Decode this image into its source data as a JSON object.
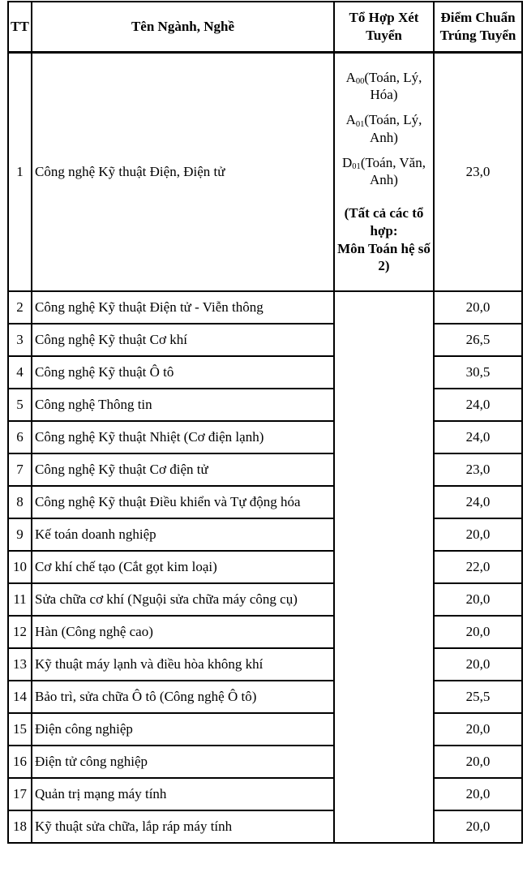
{
  "table": {
    "headers": {
      "tt": "TT",
      "name": "Tên Ngành, Nghề",
      "combination": "Tổ Hợp Xét Tuyển",
      "score": "Điểm Chuẩn Trúng Tuyển"
    },
    "row1_combinations": {
      "combos": [
        {
          "letter": "A",
          "sub": "00",
          "subjects": "(Toán, Lý, Hóa)"
        },
        {
          "letter": "A",
          "sub": "01",
          "subjects": "(Toán, Lý, Anh)"
        },
        {
          "letter": "D",
          "sub": "01",
          "subjects": "(Toán, Văn, Anh)"
        }
      ],
      "note_lines": [
        "(Tất cả các tổ hợp:",
        "Môn Toán hệ số 2)"
      ]
    },
    "rows": [
      {
        "tt": "1",
        "name": "Công nghệ Kỹ thuật Điện, Điện tử",
        "score": "23,0"
      },
      {
        "tt": "2",
        "name": "Công nghệ Kỹ thuật Điện tử - Viễn thông",
        "score": "20,0"
      },
      {
        "tt": "3",
        "name": "Công nghệ Kỹ thuật Cơ khí",
        "score": "26,5"
      },
      {
        "tt": "4",
        "name": "Công nghệ Kỹ thuật Ô tô",
        "score": "30,5"
      },
      {
        "tt": "5",
        "name": "Công nghệ Thông tin",
        "score": "24,0"
      },
      {
        "tt": "6",
        "name": "Công nghệ Kỹ thuật Nhiệt (Cơ điện lạnh)",
        "score": "24,0"
      },
      {
        "tt": "7",
        "name": "Công nghệ Kỹ thuật Cơ điện tử",
        "score": "23,0"
      },
      {
        "tt": "8",
        "name": "Công nghệ Kỹ thuật Điều khiển và Tự động hóa",
        "score": "24,0"
      },
      {
        "tt": "9",
        "name": "Kế toán doanh nghiệp",
        "score": "20,0"
      },
      {
        "tt": "10",
        "name": "Cơ khí chế tạo (Cắt gọt kim loại)",
        "score": "22,0"
      },
      {
        "tt": "11",
        "name": "Sửa chữa cơ khí (Nguội sửa chữa máy công cụ)",
        "score": "20,0"
      },
      {
        "tt": "12",
        "name": "Hàn (Công nghệ cao)",
        "score": "20,0"
      },
      {
        "tt": "13",
        "name": "Kỹ thuật máy lạnh và điều hòa không khí",
        "score": "20,0"
      },
      {
        "tt": "14",
        "name": "Bảo trì, sửa chữa Ô tô (Công nghệ Ô tô)",
        "score": "25,5"
      },
      {
        "tt": "15",
        "name": "Điện công nghiệp",
        "score": "20,0"
      },
      {
        "tt": "16",
        "name": "Điện tử công nghiệp",
        "score": "20,0"
      },
      {
        "tt": "17",
        "name": "Quản trị mạng máy tính",
        "score": "20,0"
      },
      {
        "tt": "18",
        "name": "Kỹ thuật sửa chữa, lắp ráp máy tính",
        "score": "20,0"
      }
    ]
  }
}
